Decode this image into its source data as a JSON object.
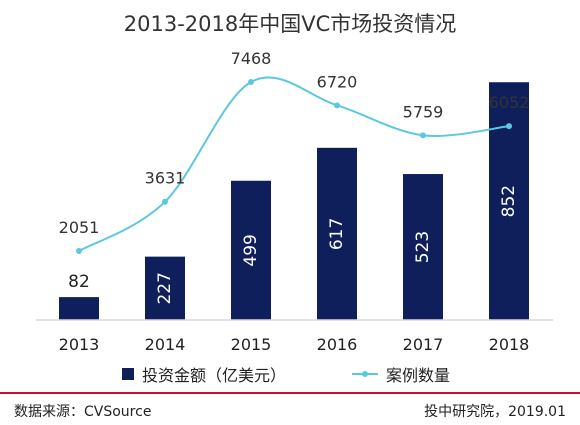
{
  "colors": {
    "bar": "#0f1f5c",
    "line": "#5cc8e0",
    "axis": "#d9d9d9",
    "accent": "#c8102e"
  },
  "chart_data": {
    "type": "bar",
    "title": "2013-2018年中国VC市场投资情况",
    "categories": [
      "2013",
      "2014",
      "2015",
      "2016",
      "2017",
      "2018"
    ],
    "series": [
      {
        "name": "投资金额（亿美元）",
        "type": "bar",
        "values": [
          82,
          227,
          499,
          617,
          523,
          852
        ]
      },
      {
        "name": "案例数量",
        "type": "line",
        "values": [
          2051,
          3631,
          7468,
          6720,
          5759,
          6052
        ]
      }
    ],
    "legend_position": "bottom",
    "grid": false
  },
  "footer": {
    "source": "数据来源：CVSource",
    "credit": "投中研究院，2019.01"
  }
}
